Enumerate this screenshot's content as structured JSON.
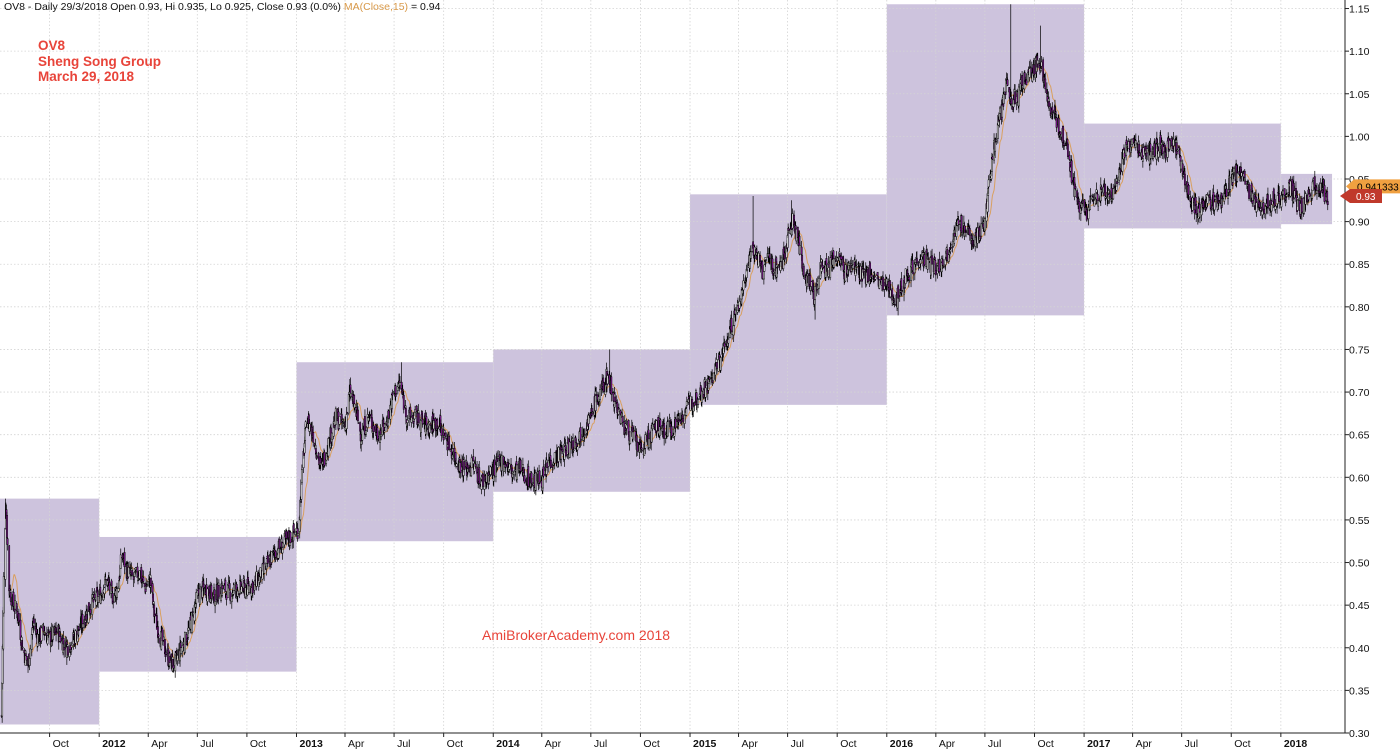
{
  "header": {
    "symbol": "OV8",
    "sep": " - ",
    "period": "Daily",
    "date": "29/3/2018",
    "open_label": "Open",
    "open": "0.93",
    "hi_label": "Hi",
    "hi": "0.935",
    "lo_label": "Lo",
    "lo": "0.925",
    "close_label": "Close",
    "close": "0.93",
    "change": "(0.0%)",
    "ma_label": "MA(Close,15)",
    "ma_value": "= 0.94"
  },
  "caption": {
    "line1": "OV8",
    "line2": "Sheng Song Group",
    "line3": "March 29, 2018"
  },
  "watermark": "AmiBrokerAcademy.com  2018",
  "colors": {
    "box_fill": "#cdc3dd",
    "candle_outline": "#000000",
    "candle_fill": "#8b1a9e",
    "ma_line": "#d9a060",
    "grid": "#d4d4d4",
    "ma_badge": "#f0a040",
    "close_badge": "#c0392b"
  },
  "chart_data": {
    "type": "candlestick",
    "y_axis": {
      "range": [
        0.3,
        1.16
      ],
      "ticks": [
        "0.30",
        "0.35",
        "0.40",
        "0.45",
        "0.50",
        "0.55",
        "0.60",
        "0.65",
        "0.70",
        "0.75",
        "0.80",
        "0.85",
        "0.90",
        "0.95",
        "1.00",
        "1.05",
        "1.10",
        "1.15"
      ]
    },
    "x_axis": {
      "range": [
        "2011-07-01",
        "2018-04-30"
      ],
      "ticks": [
        {
          "date": "2011-10-01",
          "label": "Oct",
          "year": false
        },
        {
          "date": "2012-01-01",
          "label": "2012",
          "year": true
        },
        {
          "date": "2012-04-01",
          "label": "Apr",
          "year": false
        },
        {
          "date": "2012-07-01",
          "label": "Jul",
          "year": false
        },
        {
          "date": "2012-10-01",
          "label": "Oct",
          "year": false
        },
        {
          "date": "2013-01-01",
          "label": "2013",
          "year": true
        },
        {
          "date": "2013-04-01",
          "label": "Apr",
          "year": false
        },
        {
          "date": "2013-07-01",
          "label": "Jul",
          "year": false
        },
        {
          "date": "2013-10-01",
          "label": "Oct",
          "year": false
        },
        {
          "date": "2014-01-01",
          "label": "2014",
          "year": true
        },
        {
          "date": "2014-04-01",
          "label": "Apr",
          "year": false
        },
        {
          "date": "2014-07-01",
          "label": "Jul",
          "year": false
        },
        {
          "date": "2014-10-01",
          "label": "Oct",
          "year": false
        },
        {
          "date": "2015-01-01",
          "label": "2015",
          "year": true
        },
        {
          "date": "2015-04-01",
          "label": "Apr",
          "year": false
        },
        {
          "date": "2015-07-01",
          "label": "Jul",
          "year": false
        },
        {
          "date": "2015-10-01",
          "label": "Oct",
          "year": false
        },
        {
          "date": "2016-01-01",
          "label": "2016",
          "year": true
        },
        {
          "date": "2016-04-01",
          "label": "Apr",
          "year": false
        },
        {
          "date": "2016-07-01",
          "label": "Jul",
          "year": false
        },
        {
          "date": "2016-10-01",
          "label": "Oct",
          "year": false
        },
        {
          "date": "2017-01-01",
          "label": "2017",
          "year": true
        },
        {
          "date": "2017-04-01",
          "label": "Apr",
          "year": false
        },
        {
          "date": "2017-07-01",
          "label": "Jul",
          "year": false
        },
        {
          "date": "2017-10-01",
          "label": "Oct",
          "year": false
        },
        {
          "date": "2018-01-01",
          "label": "2018",
          "year": true
        }
      ]
    },
    "yearly_range_boxes": [
      {
        "year": "2011",
        "start": "2011-07-01",
        "end": "2012-01-01",
        "low": 0.31,
        "high": 0.575
      },
      {
        "year": "2012",
        "start": "2012-01-01",
        "end": "2013-01-01",
        "low": 0.372,
        "high": 0.53
      },
      {
        "year": "2013",
        "start": "2013-01-01",
        "end": "2014-01-01",
        "low": 0.525,
        "high": 0.735
      },
      {
        "year": "2014",
        "start": "2014-01-01",
        "end": "2015-01-01",
        "low": 0.583,
        "high": 0.75
      },
      {
        "year": "2015",
        "start": "2015-01-01",
        "end": "2016-01-01",
        "low": 0.685,
        "high": 0.932
      },
      {
        "year": "2016",
        "start": "2016-01-01",
        "end": "2017-01-01",
        "low": 0.79,
        "high": 1.155
      },
      {
        "year": "2017",
        "start": "2017-01-01",
        "end": "2018-01-01",
        "low": 0.892,
        "high": 1.015
      },
      {
        "year": "2018",
        "start": "2018-01-01",
        "end": "2018-04-06",
        "low": 0.897,
        "high": 0.956
      }
    ],
    "price_path": [
      [
        "2011-07-04",
        0.32
      ],
      [
        "2011-07-08",
        0.48
      ],
      [
        "2011-07-12",
        0.57
      ],
      [
        "2011-07-18",
        0.47
      ],
      [
        "2011-07-26",
        0.45
      ],
      [
        "2011-08-03",
        0.44
      ],
      [
        "2011-08-12",
        0.4
      ],
      [
        "2011-08-22",
        0.38
      ],
      [
        "2011-09-01",
        0.43
      ],
      [
        "2011-09-10",
        0.41
      ],
      [
        "2011-09-20",
        0.42
      ],
      [
        "2011-10-01",
        0.41
      ],
      [
        "2011-10-15",
        0.42
      ],
      [
        "2011-11-01",
        0.4
      ],
      [
        "2011-11-15",
        0.41
      ],
      [
        "2011-12-01",
        0.43
      ],
      [
        "2011-12-15",
        0.45
      ],
      [
        "2012-01-01",
        0.46
      ],
      [
        "2012-01-15",
        0.48
      ],
      [
        "2012-01-25",
        0.46
      ],
      [
        "2012-02-05",
        0.47
      ],
      [
        "2012-02-12",
        0.51
      ],
      [
        "2012-02-22",
        0.49
      ],
      [
        "2012-03-05",
        0.48
      ],
      [
        "2012-03-15",
        0.49
      ],
      [
        "2012-03-25",
        0.47
      ],
      [
        "2012-04-05",
        0.48
      ],
      [
        "2012-04-12",
        0.44
      ],
      [
        "2012-04-20",
        0.42
      ],
      [
        "2012-05-01",
        0.4
      ],
      [
        "2012-05-10",
        0.385
      ],
      [
        "2012-05-20",
        0.38
      ],
      [
        "2012-06-01",
        0.4
      ],
      [
        "2012-06-10",
        0.41
      ],
      [
        "2012-06-20",
        0.43
      ],
      [
        "2012-07-01",
        0.46
      ],
      [
        "2012-07-15",
        0.47
      ],
      [
        "2012-08-01",
        0.46
      ],
      [
        "2012-08-15",
        0.47
      ],
      [
        "2012-09-01",
        0.465
      ],
      [
        "2012-09-15",
        0.47
      ],
      [
        "2012-10-01",
        0.47
      ],
      [
        "2012-10-15",
        0.475
      ],
      [
        "2012-11-01",
        0.49
      ],
      [
        "2012-11-20",
        0.51
      ],
      [
        "2012-12-05",
        0.52
      ],
      [
        "2012-12-20",
        0.53
      ],
      [
        "2013-01-05",
        0.54
      ],
      [
        "2013-01-12",
        0.61
      ],
      [
        "2013-01-20",
        0.67
      ],
      [
        "2013-02-01",
        0.65
      ],
      [
        "2013-02-15",
        0.61
      ],
      [
        "2013-03-01",
        0.64
      ],
      [
        "2013-03-15",
        0.67
      ],
      [
        "2013-04-01",
        0.66
      ],
      [
        "2013-04-10",
        0.7
      ],
      [
        "2013-04-20",
        0.68
      ],
      [
        "2013-05-01",
        0.65
      ],
      [
        "2013-05-15",
        0.67
      ],
      [
        "2013-06-01",
        0.65
      ],
      [
        "2013-06-15",
        0.66
      ],
      [
        "2013-07-01",
        0.7
      ],
      [
        "2013-07-12",
        0.71
      ],
      [
        "2013-07-25",
        0.67
      ],
      [
        "2013-08-10",
        0.67
      ],
      [
        "2013-09-01",
        0.66
      ],
      [
        "2013-09-20",
        0.665
      ],
      [
        "2013-10-10",
        0.64
      ],
      [
        "2013-10-25",
        0.62
      ],
      [
        "2013-11-10",
        0.61
      ],
      [
        "2013-11-25",
        0.615
      ],
      [
        "2013-12-10",
        0.595
      ],
      [
        "2013-12-20",
        0.6
      ],
      [
        "2014-01-05",
        0.61
      ],
      [
        "2014-01-20",
        0.62
      ],
      [
        "2014-02-05",
        0.605
      ],
      [
        "2014-02-20",
        0.61
      ],
      [
        "2014-03-05",
        0.6
      ],
      [
        "2014-03-20",
        0.595
      ],
      [
        "2014-04-05",
        0.6
      ],
      [
        "2014-04-15",
        0.62
      ],
      [
        "2014-05-01",
        0.625
      ],
      [
        "2014-05-20",
        0.635
      ],
      [
        "2014-06-05",
        0.645
      ],
      [
        "2014-06-20",
        0.66
      ],
      [
        "2014-07-01",
        0.67
      ],
      [
        "2014-07-10",
        0.69
      ],
      [
        "2014-07-20",
        0.7
      ],
      [
        "2014-08-01",
        0.72
      ],
      [
        "2014-08-10",
        0.7
      ],
      [
        "2014-08-20",
        0.68
      ],
      [
        "2014-09-01",
        0.66
      ],
      [
        "2014-09-15",
        0.65
      ],
      [
        "2014-10-01",
        0.63
      ],
      [
        "2014-10-15",
        0.645
      ],
      [
        "2014-11-01",
        0.66
      ],
      [
        "2014-11-15",
        0.655
      ],
      [
        "2014-12-01",
        0.66
      ],
      [
        "2014-12-20",
        0.675
      ],
      [
        "2015-01-05",
        0.69
      ],
      [
        "2015-01-20",
        0.7
      ],
      [
        "2015-02-05",
        0.71
      ],
      [
        "2015-02-20",
        0.73
      ],
      [
        "2015-03-05",
        0.75
      ],
      [
        "2015-03-20",
        0.78
      ],
      [
        "2015-04-01",
        0.8
      ],
      [
        "2015-04-15",
        0.84
      ],
      [
        "2015-04-25",
        0.87
      ],
      [
        "2015-05-05",
        0.86
      ],
      [
        "2015-05-15",
        0.84
      ],
      [
        "2015-05-25",
        0.86
      ],
      [
        "2015-06-05",
        0.845
      ],
      [
        "2015-06-20",
        0.85
      ],
      [
        "2015-07-01",
        0.88
      ],
      [
        "2015-07-10",
        0.9
      ],
      [
        "2015-07-20",
        0.88
      ],
      [
        "2015-08-01",
        0.84
      ],
      [
        "2015-08-10",
        0.83
      ],
      [
        "2015-08-20",
        0.81
      ],
      [
        "2015-09-01",
        0.85
      ],
      [
        "2015-09-15",
        0.845
      ],
      [
        "2015-10-01",
        0.86
      ],
      [
        "2015-10-15",
        0.84
      ],
      [
        "2015-11-01",
        0.85
      ],
      [
        "2015-11-15",
        0.835
      ],
      [
        "2015-12-01",
        0.84
      ],
      [
        "2015-12-15",
        0.83
      ],
      [
        "2016-01-05",
        0.82
      ],
      [
        "2016-01-20",
        0.81
      ],
      [
        "2016-02-05",
        0.835
      ],
      [
        "2016-02-20",
        0.85
      ],
      [
        "2016-03-05",
        0.86
      ],
      [
        "2016-03-20",
        0.85
      ],
      [
        "2016-04-05",
        0.845
      ],
      [
        "2016-04-20",
        0.86
      ],
      [
        "2016-05-01",
        0.88
      ],
      [
        "2016-05-15",
        0.9
      ],
      [
        "2016-05-25",
        0.89
      ],
      [
        "2016-06-05",
        0.88
      ],
      [
        "2016-06-20",
        0.885
      ],
      [
        "2016-07-01",
        0.9
      ],
      [
        "2016-07-10",
        0.95
      ],
      [
        "2016-07-20",
        1.0
      ],
      [
        "2016-08-01",
        1.03
      ],
      [
        "2016-08-10",
        1.06
      ],
      [
        "2016-08-20",
        1.04
      ],
      [
        "2016-09-01",
        1.05
      ],
      [
        "2016-09-15",
        1.07
      ],
      [
        "2016-10-01",
        1.08
      ],
      [
        "2016-10-10",
        1.09
      ],
      [
        "2016-10-20",
        1.06
      ],
      [
        "2016-11-01",
        1.03
      ],
      [
        "2016-11-15",
        1.01
      ],
      [
        "2016-12-01",
        0.99
      ],
      [
        "2016-12-10",
        0.95
      ],
      [
        "2016-12-20",
        0.92
      ],
      [
        "2017-01-05",
        0.91
      ],
      [
        "2017-01-20",
        0.93
      ],
      [
        "2017-02-05",
        0.935
      ],
      [
        "2017-02-20",
        0.93
      ],
      [
        "2017-03-05",
        0.95
      ],
      [
        "2017-03-15",
        0.98
      ],
      [
        "2017-04-01",
        0.99
      ],
      [
        "2017-04-15",
        0.985
      ],
      [
        "2017-05-01",
        0.98
      ],
      [
        "2017-05-15",
        0.99
      ],
      [
        "2017-06-01",
        0.985
      ],
      [
        "2017-06-15",
        0.995
      ],
      [
        "2017-07-01",
        0.97
      ],
      [
        "2017-07-10",
        0.94
      ],
      [
        "2017-07-20",
        0.92
      ],
      [
        "2017-08-01",
        0.915
      ],
      [
        "2017-08-15",
        0.925
      ],
      [
        "2017-09-01",
        0.92
      ],
      [
        "2017-09-15",
        0.925
      ],
      [
        "2017-10-01",
        0.95
      ],
      [
        "2017-10-15",
        0.96
      ],
      [
        "2017-11-01",
        0.94
      ],
      [
        "2017-11-15",
        0.925
      ],
      [
        "2017-12-01",
        0.92
      ],
      [
        "2017-12-20",
        0.925
      ],
      [
        "2018-01-05",
        0.93
      ],
      [
        "2018-01-20",
        0.94
      ],
      [
        "2018-02-05",
        0.91
      ],
      [
        "2018-02-20",
        0.93
      ],
      [
        "2018-03-05",
        0.945
      ],
      [
        "2018-03-15",
        0.94
      ],
      [
        "2018-03-29",
        0.93
      ]
    ],
    "spikes": [
      {
        "date": "2011-07-10",
        "high": 0.575
      },
      {
        "date": "2013-07-15",
        "high": 0.735
      },
      {
        "date": "2014-08-05",
        "high": 0.75
      },
      {
        "date": "2015-04-28",
        "high": 0.93
      },
      {
        "date": "2015-07-08",
        "high": 0.925
      },
      {
        "date": "2015-08-22",
        "low": 0.785
      },
      {
        "date": "2016-01-22",
        "low": 0.79
      },
      {
        "date": "2016-08-18",
        "high": 1.155
      },
      {
        "date": "2016-10-12",
        "high": 1.13
      }
    ],
    "ma_period": 15,
    "last_values": {
      "ma": "0.941333",
      "close": "0.93"
    }
  }
}
